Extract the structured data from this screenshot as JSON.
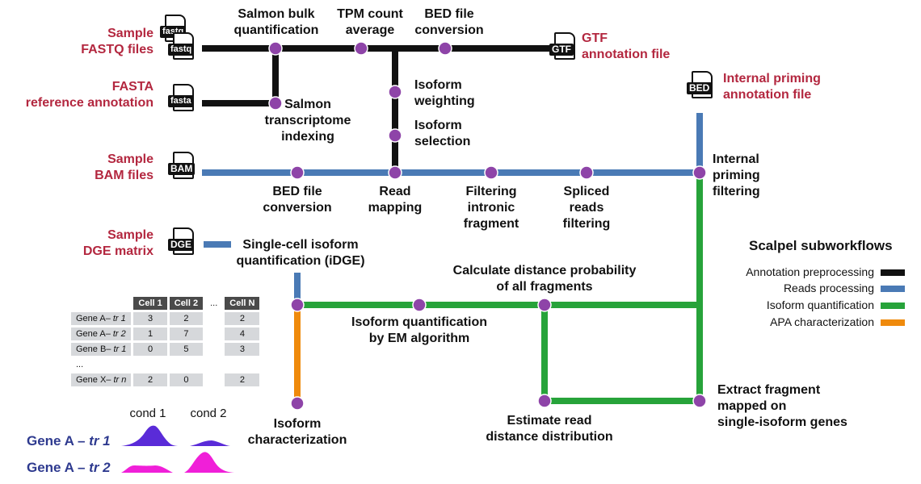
{
  "colors": {
    "annotation": "#111111",
    "reads": "#4a7ab5",
    "isoform": "#27a33a",
    "apa": "#ef8a0c",
    "node": "#8e44a8",
    "input": "#b3273f",
    "tr1": "#5a2bd8",
    "tr2": "#f01fd8",
    "gene": "#2e3a8f"
  },
  "inputs": {
    "fastq": "Sample\nFASTQ files",
    "fasta": "FASTA\nreference annotation",
    "bam": "Sample\nBAM files",
    "dge": "Sample\nDGE matrix",
    "gtf": "GTF\nannotation file",
    "bed": "Internal priming\nannotation file"
  },
  "file_icons": {
    "fastq_back": "fastq",
    "fastq_front": "fastq",
    "fasta": "fasta",
    "bam": "BAM",
    "dge": "DGE",
    "gtf": "GTF",
    "bed": "BED"
  },
  "steps": {
    "salmon_bulk": "Salmon bulk\nquantification",
    "tpm_avg": "TPM count\naverage",
    "bed_conv_top": "BED file\nconversion",
    "salmon_index": "Salmon\ntranscriptome\nindexing",
    "iso_weight": "Isoform\nweighting",
    "iso_select": "Isoform\nselection",
    "bed_conv_bam": "BED file\nconversion",
    "read_map": "Read\nmapping",
    "filter_intronic": "Filtering\nintronic\nfragment",
    "spliced_filter": "Spliced\nreads\nfiltering",
    "internal_priming": "Internal\npriming\nfiltering",
    "sc_quant": "Single-cell isoform\nquantification (iDGE)",
    "calc_dist": "Calculate distance probability\nof all fragments",
    "em_quant": "Isoform quantification\nby EM algorithm",
    "iso_char": "Isoform\ncharacterization",
    "est_dist": "Estimate read\ndistance distribution",
    "extract_frag": "Extract fragment\nmapped on\nsingle-isoform genes"
  },
  "legend": {
    "title": "Scalpel subworkflows",
    "items": [
      {
        "label": "Annotation preprocessing",
        "color": "#111111"
      },
      {
        "label": "Reads processing",
        "color": "#4a7ab5"
      },
      {
        "label": "Isoform quantification",
        "color": "#27a33a"
      },
      {
        "label": "APA characterization",
        "color": "#ef8a0c"
      }
    ]
  },
  "matrix": {
    "headers": [
      "Cell 1",
      "Cell 2",
      "...",
      "Cell N"
    ],
    "rows": [
      {
        "gene": "Gene A–",
        "tr": "tr 1",
        "values": [
          "3",
          "2",
          "",
          "2"
        ]
      },
      {
        "gene": "Gene A–",
        "tr": "tr 2",
        "values": [
          "1",
          "7",
          "",
          "4"
        ]
      },
      {
        "gene": "Gene B–",
        "tr": "tr 1",
        "values": [
          "0",
          "5",
          "",
          "3"
        ]
      },
      {
        "gene": "...",
        "tr": "",
        "values": [
          "",
          "",
          "",
          ""
        ]
      },
      {
        "gene": "Gene X–",
        "tr": "tr n",
        "values": [
          "2",
          "0",
          "",
          "2"
        ]
      }
    ]
  },
  "coverage": {
    "cond1": "cond 1",
    "cond2": "cond 2",
    "tr1_gene": "Gene A",
    "tr1_sep": " – ",
    "tr1_name": "tr 1",
    "tr2_gene": "Gene A",
    "tr2_sep": " – ",
    "tr2_name": "tr 2"
  }
}
